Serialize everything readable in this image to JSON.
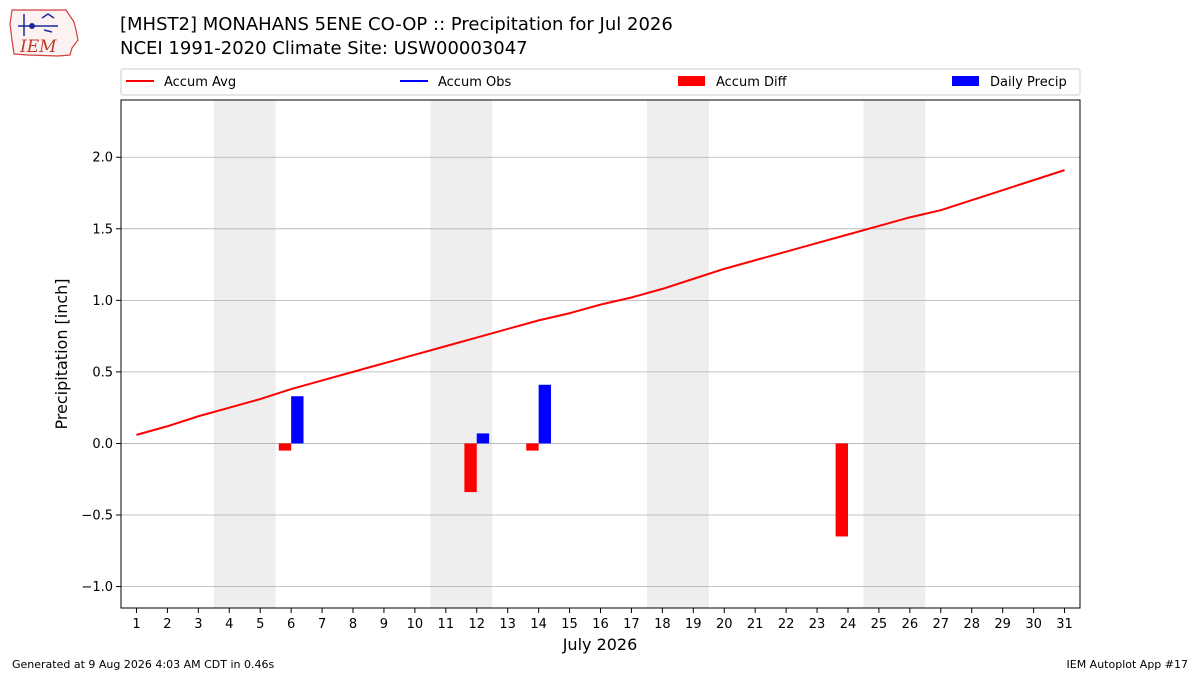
{
  "header": {
    "title_line1": "[MHST2] MONAHANS 5ENE CO-OP :: Precipitation for Jul 2026",
    "title_line2": "NCEI 1991-2020 Climate Site: USW00003047",
    "logo_text": "IEM"
  },
  "footer": {
    "left": "Generated at 9 Aug 2026 4:03 AM CDT in 0.46s",
    "right": "IEM Autoplot App #17"
  },
  "colors": {
    "accum_avg": "#ff0000",
    "accum_obs": "#0000ff",
    "accum_diff": "#ff0000",
    "daily_precip": "#0000ff",
    "weekend_shade": "#eeeeee",
    "grid": "#b0b0b0"
  },
  "chart_data": {
    "type": "bar",
    "xlabel": "July 2026",
    "ylabel": "Precipitation [inch]",
    "xlim": [
      0.5,
      31.5
    ],
    "ylim": [
      -1.15,
      2.4
    ],
    "yticks": [
      -1.0,
      -0.5,
      0.0,
      0.5,
      1.0,
      1.5,
      2.0
    ],
    "ytick_labels": [
      "−1.0",
      "−0.5",
      "0.0",
      "0.5",
      "1.0",
      "1.5",
      "2.0"
    ],
    "grid": true,
    "legend": {
      "position": "top",
      "entries": [
        {
          "label": "Accum Avg",
          "kind": "line",
          "color": "#ff0000"
        },
        {
          "label": "Accum Obs",
          "kind": "line",
          "color": "#0000ff"
        },
        {
          "label": "Accum Diff",
          "kind": "patch",
          "color": "#ff0000"
        },
        {
          "label": "Daily Precip",
          "kind": "patch",
          "color": "#0000ff"
        }
      ]
    },
    "weekend_days": [
      [
        4,
        5
      ],
      [
        11,
        12
      ],
      [
        18,
        19
      ],
      [
        25,
        26
      ]
    ],
    "days": [
      1,
      2,
      3,
      4,
      5,
      6,
      7,
      8,
      9,
      10,
      11,
      12,
      13,
      14,
      15,
      16,
      17,
      18,
      19,
      20,
      21,
      22,
      23,
      24,
      25,
      26,
      27,
      28,
      29,
      30,
      31
    ],
    "series": [
      {
        "name": "Accum Avg",
        "type": "line",
        "color": "#ff0000",
        "values": [
          0.06,
          0.12,
          0.19,
          0.25,
          0.31,
          0.38,
          0.44,
          0.5,
          0.56,
          0.62,
          0.68,
          0.74,
          0.8,
          0.86,
          0.91,
          0.97,
          1.02,
          1.08,
          1.15,
          1.22,
          1.28,
          1.34,
          1.4,
          1.46,
          1.52,
          1.58,
          1.63,
          1.7,
          1.77,
          1.84,
          1.91
        ]
      },
      {
        "name": "Accum Diff",
        "type": "bar",
        "color": "#ff0000",
        "points": [
          [
            6,
            -0.05
          ],
          [
            12,
            -0.34
          ],
          [
            14,
            -0.05
          ],
          [
            24,
            -0.65
          ]
        ]
      },
      {
        "name": "Daily Precip",
        "type": "bar",
        "color": "#0000ff",
        "points": [
          [
            6,
            0.33
          ],
          [
            12,
            0.07
          ],
          [
            14,
            0.41
          ]
        ]
      }
    ]
  }
}
